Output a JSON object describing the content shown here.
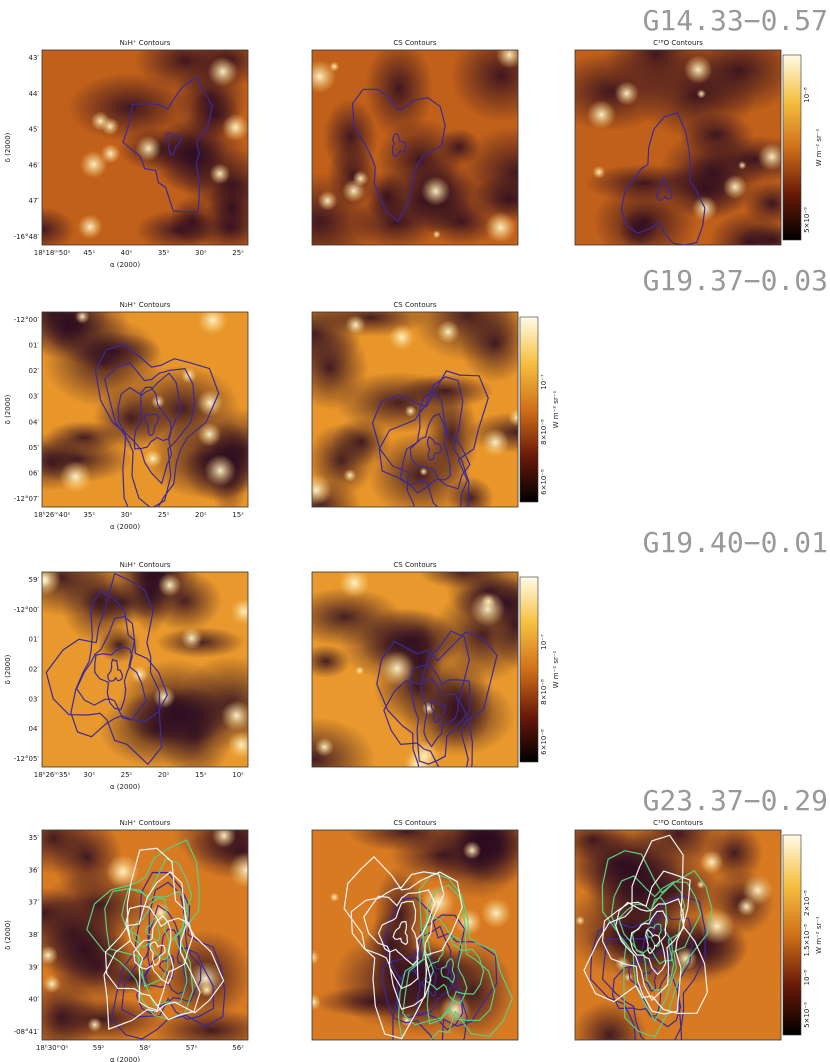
{
  "figures": [
    {
      "name": "G14.33−0.57",
      "panels": [
        "N₂H⁺ Contours",
        "CS Contours",
        "C¹⁸O Contours"
      ],
      "y_label": "δ (2000)",
      "x_label": "α (2000)",
      "y_ticks": [
        "43′",
        "44′",
        "45′",
        "46′",
        "47′",
        "-16°48′"
      ],
      "x_ticks": [
        "18ʰ18ᵐ50ˢ",
        "45ˢ",
        "40ˢ",
        "35ˢ",
        "30ˢ",
        "25ˢ"
      ],
      "colorbar_ticks": [
        "5×10⁻⁹",
        "10⁻⁸"
      ],
      "colorbar_unit": "W m⁻² sr⁻¹"
    },
    {
      "name": "G19.37−0.03",
      "panels": [
        "N₂H⁺ Contours",
        "CS Contours"
      ],
      "y_label": "δ (2000)",
      "x_label": "α (2000)",
      "y_ticks": [
        "-12°00′",
        "01′",
        "02′",
        "03′",
        "04′",
        "05′",
        "06′",
        "-12°07′"
      ],
      "x_ticks": [
        "18ʰ26ᵐ40ˢ",
        "35ˢ",
        "30ˢ",
        "25ˢ",
        "20ˢ",
        "15ˢ"
      ],
      "colorbar_ticks": [
        "6×10⁻⁸",
        "8×10⁻⁸",
        "10⁻⁷"
      ],
      "colorbar_unit": "W m⁻² sr⁻¹"
    },
    {
      "name": "G19.40−0.01",
      "panels": [
        "N₂H⁺ Contours",
        "CS Contours"
      ],
      "y_label": "δ (2000)",
      "x_label": "α (2000)",
      "y_ticks": [
        "59′",
        "-12°00′",
        "01′",
        "02′",
        "03′",
        "04′",
        "-12°05′"
      ],
      "x_ticks": [
        "18ʰ26ᵐ35ˢ",
        "30ˢ",
        "25ˢ",
        "20ˢ",
        "15ˢ",
        "10ˢ"
      ],
      "colorbar_ticks": [
        "6×10⁻⁸",
        "8×10⁻⁸",
        "10⁻⁷"
      ],
      "colorbar_unit": "W m⁻² sr⁻¹"
    },
    {
      "name": "G23.37−0.29",
      "panels": [
        "N₂H⁺ Contours",
        "CS Contours",
        "C¹⁸O Contours"
      ],
      "y_label": "δ (2000)",
      "x_label": "α (2000)",
      "y_ticks": [
        "35′",
        "36′",
        "37′",
        "38′",
        "39′",
        "40′",
        "-08°41′"
      ],
      "x_ticks": [
        "18ʰ30ᵐ0ˢ",
        "59ˢ",
        "58ˢ",
        "57ˢ",
        "56ˢ"
      ],
      "colorbar_ticks": [
        "5×10⁻⁹",
        "10⁻⁸",
        "1.5×10⁻⁸",
        "2×10⁻⁸"
      ],
      "colorbar_unit": "W m⁻² sr⁻¹"
    }
  ]
}
